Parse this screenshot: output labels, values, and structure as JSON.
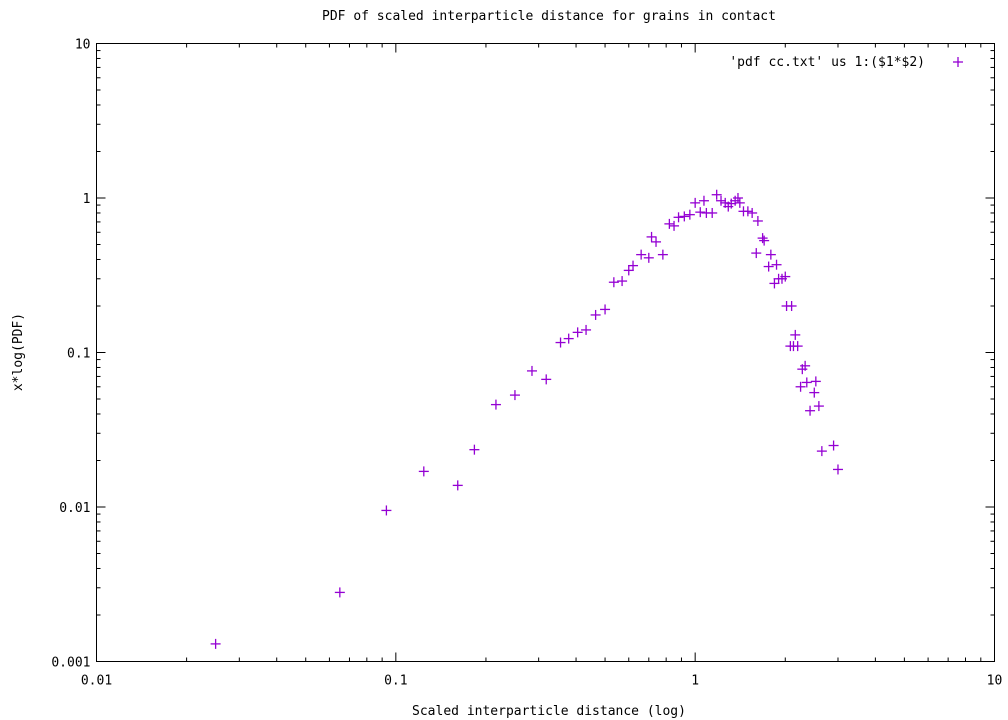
{
  "chart_data": {
    "type": "scatter",
    "title": "PDF of scaled interparticle distance for grains in contact",
    "xlabel": "Scaled interparticle distance (log)",
    "ylabel": "x*log(PDF)",
    "xscale": "log",
    "yscale": "log",
    "xlim": [
      0.01,
      10
    ],
    "ylim": [
      0.001,
      10
    ],
    "xticks": [
      0.01,
      0.1,
      1,
      10
    ],
    "xtick_labels": [
      "0.01",
      "0.1",
      "1",
      "10"
    ],
    "yticks": [
      0.001,
      0.01,
      0.1,
      1,
      10
    ],
    "ytick_labels": [
      "0.001",
      "0.01",
      "0.1",
      "1",
      "10"
    ],
    "grid": false,
    "legend_position": "top-right",
    "marker": "+",
    "color": "#9400d3",
    "series": [
      {
        "name": "'pdf cc.txt' us 1:($1*$2)",
        "points": [
          [
            0.025,
            0.0013
          ],
          [
            0.065,
            0.0028
          ],
          [
            0.093,
            0.0095
          ],
          [
            0.124,
            0.017
          ],
          [
            0.161,
            0.0138
          ],
          [
            0.183,
            0.0235
          ],
          [
            0.216,
            0.046
          ],
          [
            0.25,
            0.053
          ],
          [
            0.285,
            0.076
          ],
          [
            0.318,
            0.067
          ],
          [
            0.355,
            0.116
          ],
          [
            0.378,
            0.123
          ],
          [
            0.405,
            0.135
          ],
          [
            0.432,
            0.14
          ],
          [
            0.465,
            0.175
          ],
          [
            0.5,
            0.19
          ],
          [
            0.535,
            0.285
          ],
          [
            0.57,
            0.29
          ],
          [
            0.6,
            0.34
          ],
          [
            0.62,
            0.365
          ],
          [
            0.66,
            0.43
          ],
          [
            0.7,
            0.41
          ],
          [
            0.715,
            0.56
          ],
          [
            0.74,
            0.52
          ],
          [
            0.78,
            0.43
          ],
          [
            0.82,
            0.68
          ],
          [
            0.85,
            0.66
          ],
          [
            0.88,
            0.75
          ],
          [
            0.92,
            0.76
          ],
          [
            0.96,
            0.78
          ],
          [
            1.0,
            0.93
          ],
          [
            1.04,
            0.81
          ],
          [
            1.07,
            0.96
          ],
          [
            1.09,
            0.8
          ],
          [
            1.14,
            0.8
          ],
          [
            1.18,
            1.05
          ],
          [
            1.22,
            0.96
          ],
          [
            1.26,
            0.93
          ],
          [
            1.29,
            0.88
          ],
          [
            1.32,
            0.92
          ],
          [
            1.36,
            0.96
          ],
          [
            1.39,
            1.0
          ],
          [
            1.41,
            0.93
          ],
          [
            1.45,
            0.82
          ],
          [
            1.5,
            0.82
          ],
          [
            1.55,
            0.8
          ],
          [
            1.6,
            0.44
          ],
          [
            1.62,
            0.71
          ],
          [
            1.68,
            0.55
          ],
          [
            1.7,
            0.53
          ],
          [
            1.76,
            0.36
          ],
          [
            1.79,
            0.43
          ],
          [
            1.84,
            0.28
          ],
          [
            1.87,
            0.37
          ],
          [
            1.9,
            0.3
          ],
          [
            1.95,
            0.3
          ],
          [
            2.0,
            0.31
          ],
          [
            2.02,
            0.2
          ],
          [
            2.08,
            0.11
          ],
          [
            2.1,
            0.2
          ],
          [
            2.13,
            0.11
          ],
          [
            2.16,
            0.13
          ],
          [
            2.2,
            0.11
          ],
          [
            2.25,
            0.06
          ],
          [
            2.28,
            0.078
          ],
          [
            2.33,
            0.082
          ],
          [
            2.36,
            0.064
          ],
          [
            2.42,
            0.042
          ],
          [
            2.5,
            0.055
          ],
          [
            2.53,
            0.065
          ],
          [
            2.59,
            0.045
          ],
          [
            2.65,
            0.023
          ],
          [
            2.9,
            0.025
          ],
          [
            3.0,
            0.0175
          ]
        ]
      }
    ]
  }
}
